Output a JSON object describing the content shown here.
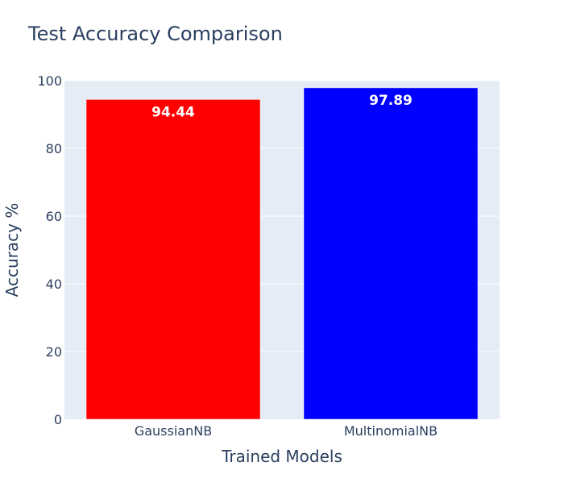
{
  "chart_data": {
    "type": "bar",
    "title": "Test Accuracy Comparison",
    "xlabel": "Trained Models",
    "ylabel": "Accuracy %",
    "categories": [
      "GaussianNB",
      "MultinomialNB"
    ],
    "values": [
      94.44,
      97.89
    ],
    "value_labels": [
      "94.44",
      "97.89"
    ],
    "bar_colors": [
      "#ff0000",
      "#0000ff"
    ],
    "ylim": [
      0,
      100
    ],
    "yticks": [
      0,
      20,
      40,
      60,
      80,
      100
    ],
    "ytick_labels": [
      "0",
      "20",
      "40",
      "60",
      "80",
      "100"
    ],
    "grid": true,
    "plot_background": "#e5ecf6",
    "gridline_color": "#ffffff",
    "text_color": "#2a3f5f"
  }
}
